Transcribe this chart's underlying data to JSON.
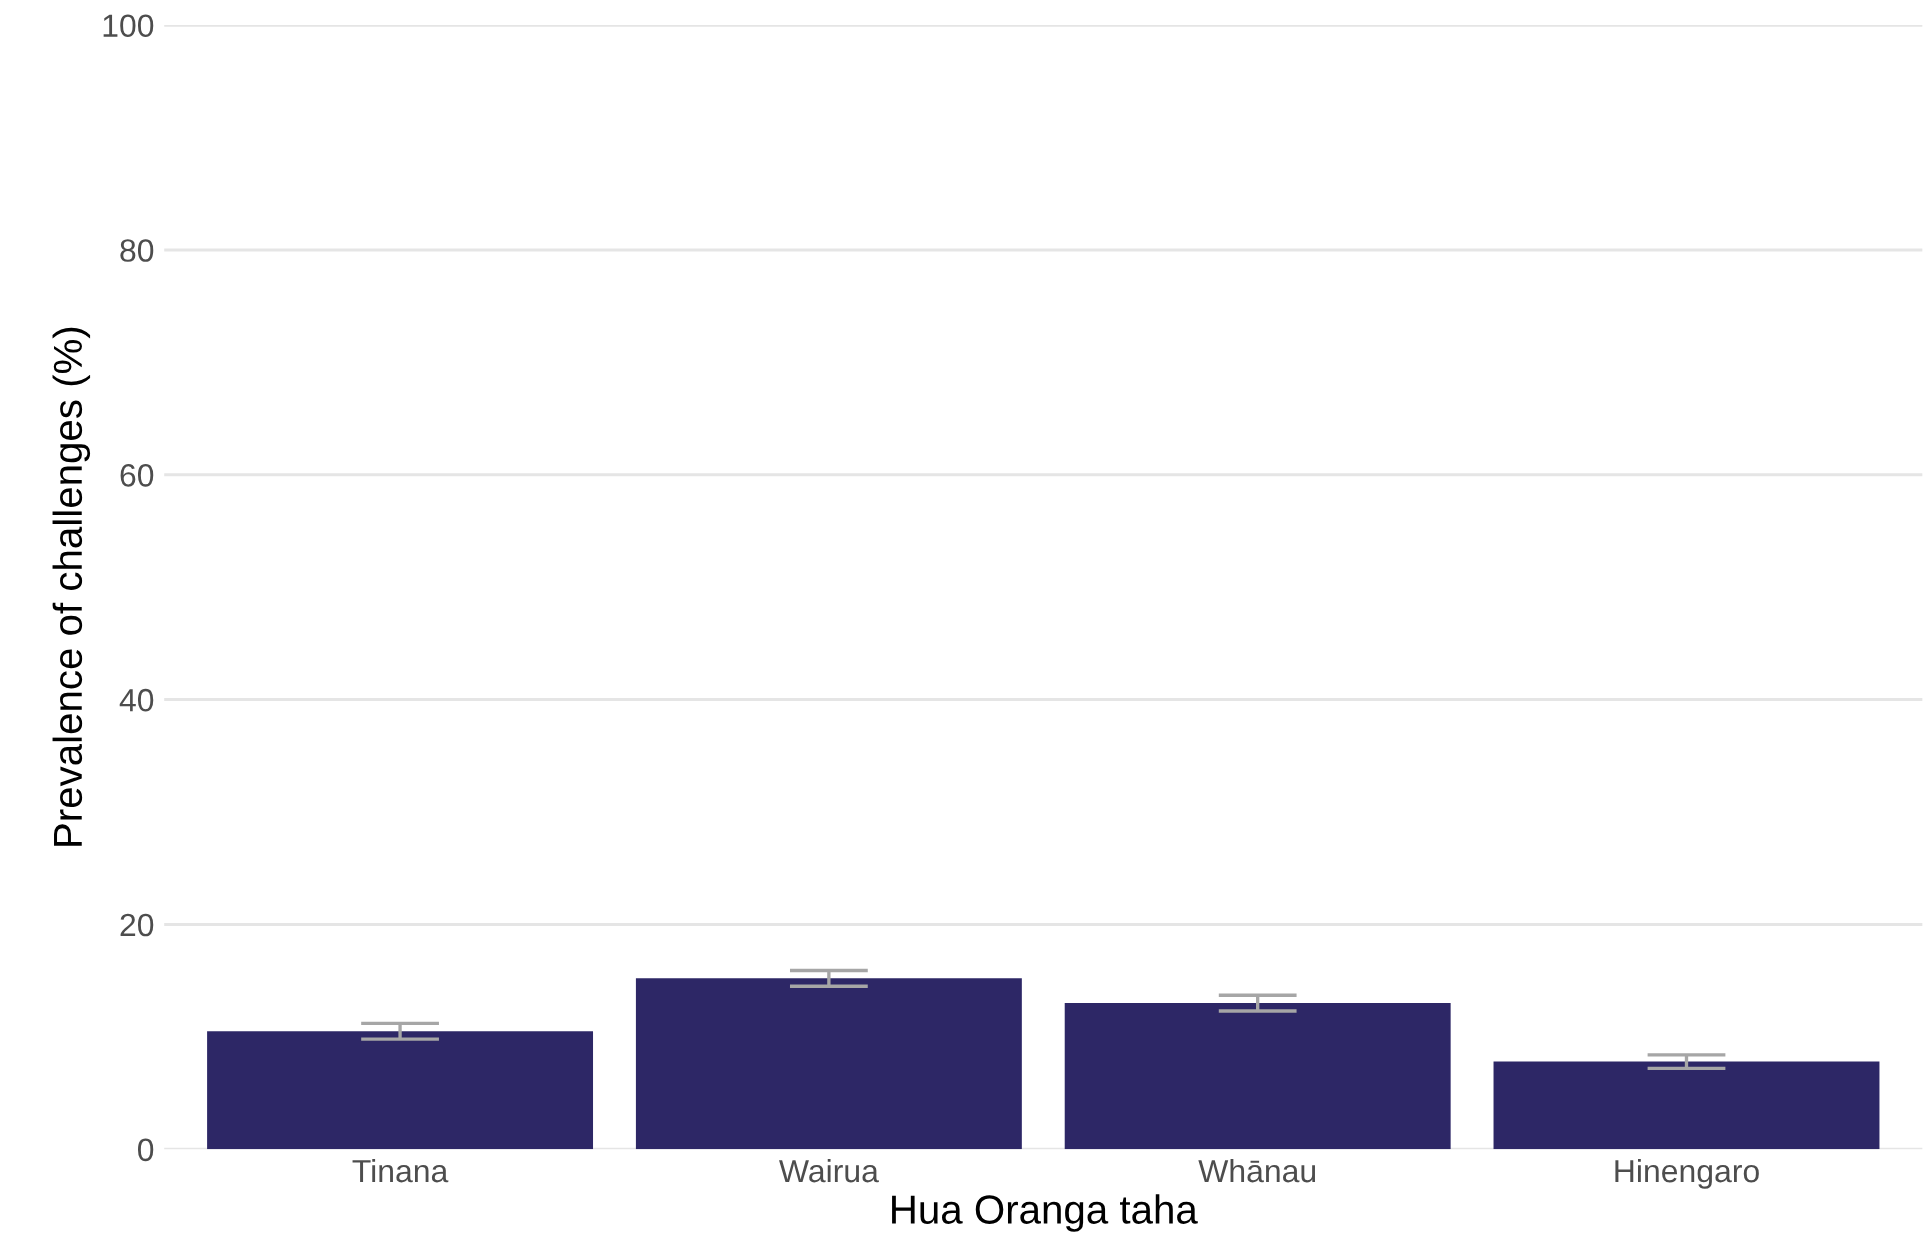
{
  "chart_data": {
    "type": "bar",
    "xlabel": "Hua Oranga taha",
    "ylabel": "Prevalence of challenges (%)",
    "categories": [
      "Tinana",
      "Wairua",
      "Whānau",
      "Hinengaro"
    ],
    "values": [
      10.5,
      15.2,
      13.0,
      7.8
    ],
    "errors": [
      0.7,
      0.7,
      0.7,
      0.6
    ],
    "color": "#2d2766",
    "ylim": [
      0,
      100
    ],
    "yticks": [
      0,
      20,
      40,
      60,
      80,
      100
    ],
    "grid": "y"
  }
}
